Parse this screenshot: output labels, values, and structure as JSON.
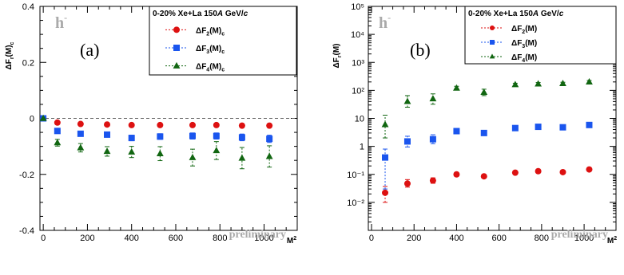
{
  "chart_data": [
    {
      "type": "scatter",
      "panel_label": "(a)",
      "particle_label": "h",
      "particle_sup": "-",
      "watermark": "preliminary",
      "legend_title": "0-20% Xe+La 150A GeV/c",
      "legend_placement": "top-right",
      "ylabel": "ΔF_r(M)_c",
      "xlabel": "M²",
      "xlim": [
        -15,
        1150
      ],
      "ylim": [
        -0.4,
        0.4
      ],
      "xticks": [
        0,
        200,
        400,
        600,
        800,
        1000
      ],
      "yticks": [
        -0.4,
        -0.2,
        0,
        0.2,
        0.4
      ],
      "ytick_labels": [
        "-0.4",
        "-0.2",
        "0",
        "0.2",
        "0.4"
      ],
      "x": [
        0,
        64,
        169,
        289,
        400,
        529,
        676,
        784,
        900,
        1024
      ],
      "series": [
        {
          "name": "ΔF₂(M)_c",
          "legend_main": "ΔF",
          "legend_sub": "2",
          "legend_tail": "(M)",
          "legend_tail_sub": "c",
          "marker": "circle",
          "color": "#dd1111",
          "values": [
            0,
            -0.015,
            -0.02,
            -0.022,
            -0.024,
            -0.024,
            -0.024,
            -0.024,
            -0.026,
            -0.026
          ],
          "errors": [
            0,
            0.003,
            0.003,
            0.004,
            0.004,
            0.004,
            0.005,
            0.005,
            0.006,
            0.006
          ]
        },
        {
          "name": "ΔF₃(M)_c",
          "legend_main": "ΔF",
          "legend_sub": "3",
          "legend_tail": "(M)",
          "legend_tail_sub": "c",
          "marker": "square",
          "color": "#1a55ee",
          "values": [
            0,
            -0.045,
            -0.055,
            -0.058,
            -0.07,
            -0.065,
            -0.063,
            -0.063,
            -0.068,
            -0.073
          ],
          "errors": [
            0,
            0.008,
            0.008,
            0.009,
            0.01,
            0.01,
            0.011,
            0.011,
            0.012,
            0.013
          ]
        },
        {
          "name": "ΔF₄(M)_c",
          "legend_main": "ΔF",
          "legend_sub": "4",
          "legend_tail": "(M)",
          "legend_tail_sub": "c",
          "marker": "triangle",
          "color": "#116611",
          "values": [
            0,
            -0.087,
            -0.105,
            -0.118,
            -0.12,
            -0.126,
            -0.14,
            -0.115,
            -0.142,
            -0.136
          ],
          "errors": [
            0,
            0.012,
            0.015,
            0.017,
            0.02,
            0.025,
            0.03,
            0.032,
            0.038,
            0.038
          ]
        }
      ]
    },
    {
      "type": "scatter",
      "panel_label": "(b)",
      "particle_label": "h",
      "particle_sup": "-",
      "watermark": "preliminary",
      "legend_title": "0-20% Xe+La 150A GeV/c",
      "legend_placement": "top-right",
      "ylabel": "ΔF_r(M)",
      "xlabel": "M²",
      "yscale": "log",
      "xlim": [
        -15,
        1150
      ],
      "ylim": [
        0.001,
        100000
      ],
      "xticks": [
        0,
        200,
        400,
        600,
        800,
        1000
      ],
      "yticks": [
        0.01,
        0.1,
        1,
        10,
        100,
        1000,
        10000,
        100000
      ],
      "ytick_labels": [
        "10⁻²",
        "10⁻¹",
        "1",
        "10",
        "10²",
        "10³",
        "10⁴",
        "10⁵"
      ],
      "x": [
        64,
        169,
        289,
        400,
        529,
        676,
        784,
        900,
        1024
      ],
      "series": [
        {
          "name": "ΔF₂(M)",
          "legend_main": "ΔF",
          "legend_sub": "2",
          "legend_tail": "(M)",
          "legend_tail_sub": "",
          "marker": "circle",
          "color": "#dd1111",
          "values": [
            0.022,
            0.047,
            0.06,
            0.1,
            0.085,
            0.115,
            0.13,
            0.12,
            0.15
          ],
          "err_lo": [
            0.012,
            0.012,
            0.012,
            0.01,
            0.01,
            0.01,
            0.01,
            0.01,
            0.012
          ],
          "err_hi": [
            0.015,
            0.018,
            0.015,
            0.012,
            0.012,
            0.012,
            0.012,
            0.012,
            0.015
          ]
        },
        {
          "name": "ΔF₃(M)",
          "legend_main": "ΔF",
          "legend_sub": "3",
          "legend_tail": "(M)",
          "legend_tail_sub": "",
          "marker": "square",
          "color": "#1a55ee",
          "values": [
            0.4,
            1.5,
            1.8,
            3.5,
            3.0,
            4.5,
            5.0,
            4.8,
            5.8
          ],
          "err_lo": [
            0.37,
            0.55,
            0.55,
            0.4,
            0.4,
            0.5,
            0.5,
            0.5,
            0.6
          ],
          "err_hi": [
            0.4,
            0.8,
            0.8,
            0.5,
            0.5,
            0.6,
            0.6,
            0.6,
            0.7
          ]
        },
        {
          "name": "ΔF₄(M)",
          "legend_main": "ΔF",
          "legend_sub": "4",
          "legend_tail": "(M)",
          "legend_tail_sub": "",
          "marker": "triangle",
          "color": "#116611",
          "values": [
            6,
            40,
            50,
            120,
            85,
            160,
            170,
            175,
            200
          ],
          "err_lo": [
            4,
            15,
            18,
            15,
            20,
            15,
            15,
            15,
            20
          ],
          "err_hi": [
            7,
            25,
            25,
            20,
            25,
            20,
            20,
            20,
            25
          ]
        }
      ]
    }
  ]
}
